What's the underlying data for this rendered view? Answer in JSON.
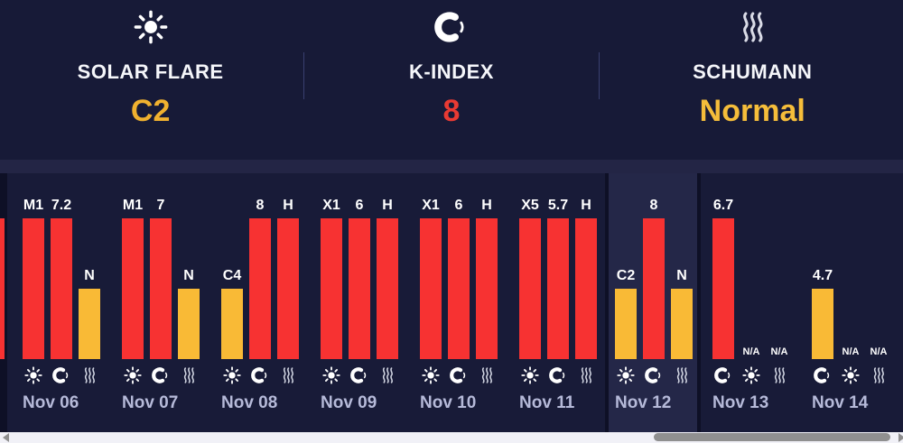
{
  "colors": {
    "bar_red": "#f73232",
    "bar_amber": "#f9ba36",
    "value_amber": "#f0b12f",
    "value_red": "#e93a33"
  },
  "summary": {
    "cards": [
      {
        "icon": "sun-icon",
        "label": "SOLAR FLARE",
        "value": "C2",
        "value_color": "#f0b12f"
      },
      {
        "icon": "k-index-icon",
        "label": "K-INDEX",
        "value": "8",
        "value_color": "#e93a33"
      },
      {
        "icon": "waves-icon",
        "label": "SCHUMANN",
        "value": "Normal",
        "value_color": "#f5bd3a"
      }
    ]
  },
  "chart_data": {
    "type": "bar",
    "metrics_legend": [
      "solar_flare",
      "k_index",
      "schumann"
    ],
    "bar_levels": {
      "high": "tall bar",
      "low": "short bar",
      "none": "no bar (N/A)"
    },
    "days": [
      {
        "date": "Nov 06",
        "panel": "past",
        "bars": [
          {
            "metric": "solar_flare",
            "icon": "sun-icon",
            "label": "M1",
            "level": "high",
            "color": "red"
          },
          {
            "metric": "k_index",
            "icon": "k-index-icon",
            "label": "7.2",
            "level": "high",
            "color": "red"
          },
          {
            "metric": "schumann",
            "icon": "waves-icon",
            "label": "N",
            "level": "low",
            "color": "amber"
          }
        ]
      },
      {
        "date": "Nov 07",
        "panel": "past",
        "bars": [
          {
            "metric": "solar_flare",
            "icon": "sun-icon",
            "label": "M1",
            "level": "high",
            "color": "red"
          },
          {
            "metric": "k_index",
            "icon": "k-index-icon",
            "label": "7",
            "level": "high",
            "color": "red"
          },
          {
            "metric": "schumann",
            "icon": "waves-icon",
            "label": "N",
            "level": "low",
            "color": "amber"
          }
        ]
      },
      {
        "date": "Nov 08",
        "panel": "past",
        "bars": [
          {
            "metric": "solar_flare",
            "icon": "sun-icon",
            "label": "C4",
            "level": "low",
            "color": "amber"
          },
          {
            "metric": "k_index",
            "icon": "k-index-icon",
            "label": "8",
            "level": "high",
            "color": "red"
          },
          {
            "metric": "schumann",
            "icon": "waves-icon",
            "label": "H",
            "level": "high",
            "color": "red"
          }
        ]
      },
      {
        "date": "Nov 09",
        "panel": "past",
        "bars": [
          {
            "metric": "solar_flare",
            "icon": "sun-icon",
            "label": "X1",
            "level": "high",
            "color": "red"
          },
          {
            "metric": "k_index",
            "icon": "k-index-icon",
            "label": "6",
            "level": "high",
            "color": "red"
          },
          {
            "metric": "schumann",
            "icon": "waves-icon",
            "label": "H",
            "level": "high",
            "color": "red"
          }
        ]
      },
      {
        "date": "Nov 10",
        "panel": "past",
        "bars": [
          {
            "metric": "solar_flare",
            "icon": "sun-icon",
            "label": "X1",
            "level": "high",
            "color": "red"
          },
          {
            "metric": "k_index",
            "icon": "k-index-icon",
            "label": "6",
            "level": "high",
            "color": "red"
          },
          {
            "metric": "schumann",
            "icon": "waves-icon",
            "label": "H",
            "level": "high",
            "color": "red"
          }
        ]
      },
      {
        "date": "Nov 11",
        "panel": "past",
        "bars": [
          {
            "metric": "solar_flare",
            "icon": "sun-icon",
            "label": "X5",
            "level": "high",
            "color": "red"
          },
          {
            "metric": "k_index",
            "icon": "k-index-icon",
            "label": "5.7",
            "level": "high",
            "color": "red"
          },
          {
            "metric": "schumann",
            "icon": "waves-icon",
            "label": "H",
            "level": "high",
            "color": "red"
          }
        ]
      },
      {
        "date": "Nov 12",
        "panel": "today",
        "bars": [
          {
            "metric": "solar_flare",
            "icon": "sun-icon",
            "label": "C2",
            "level": "low",
            "color": "amber"
          },
          {
            "metric": "k_index",
            "icon": "k-index-icon",
            "label": "8",
            "level": "high",
            "color": "red"
          },
          {
            "metric": "schumann",
            "icon": "waves-icon",
            "label": "N",
            "level": "low",
            "color": "amber"
          }
        ]
      },
      {
        "date": "Nov 13",
        "panel": "forecast",
        "bars": [
          {
            "metric": "k_index",
            "icon": "k-index-icon",
            "label": "6.7",
            "level": "high",
            "color": "red"
          },
          {
            "metric": "solar_flare",
            "icon": "sun-icon",
            "label": "N/A",
            "level": "none",
            "color": null
          },
          {
            "metric": "schumann",
            "icon": "waves-icon",
            "label": "N/A",
            "level": "none",
            "color": null
          }
        ]
      },
      {
        "date": "Nov 14",
        "panel": "forecast",
        "bars": [
          {
            "metric": "k_index",
            "icon": "k-index-icon",
            "label": "4.7",
            "level": "low",
            "color": "amber"
          },
          {
            "metric": "solar_flare",
            "icon": "sun-icon",
            "label": "N/A",
            "level": "none",
            "color": null
          },
          {
            "metric": "schumann",
            "icon": "waves-icon",
            "label": "N/A",
            "level": "none",
            "color": null
          }
        ]
      }
    ]
  }
}
